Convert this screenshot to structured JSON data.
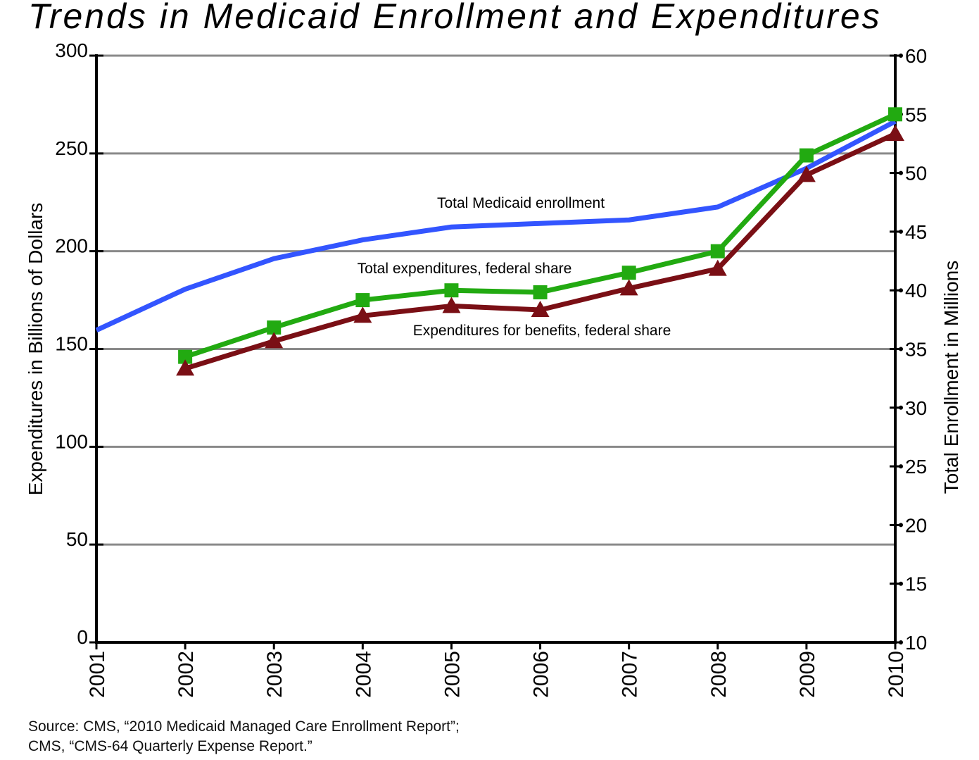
{
  "chart_data": {
    "type": "line",
    "title": "Trends in Medicaid Enrollment and Expenditures",
    "x": [
      "2001",
      "2002",
      "2003",
      "2004",
      "2005",
      "2006",
      "2007",
      "2008",
      "2009",
      "2010"
    ],
    "left_axis": {
      "label": "Expenditures in Billions of Dollars",
      "ylim": [
        0,
        300
      ],
      "ticks": [
        "0",
        "50",
        "100",
        "150",
        "200",
        "250",
        "300"
      ]
    },
    "right_axis": {
      "label": "Total Enrollment in Millions",
      "ylim": [
        10,
        60
      ],
      "ticks": [
        "10",
        "15",
        "20",
        "25",
        "30",
        "35",
        "40",
        "45",
        "50",
        "55",
        "60"
      ]
    },
    "grid": true,
    "series": [
      {
        "name": "Total Medicaid enrollment",
        "axis": "right",
        "color": "#3355ff",
        "marker": "none",
        "values": [
          36.6,
          40.1,
          42.7,
          44.3,
          45.4,
          45.7,
          46.0,
          47.1,
          50.4,
          54.4
        ]
      },
      {
        "name": "Total expenditures, federal share",
        "axis": "left",
        "color": "#22aa11",
        "marker": "square",
        "values": [
          null,
          146,
          161,
          175,
          180,
          179,
          189,
          200,
          249,
          270
        ]
      },
      {
        "name": "Expenditures for benefits, federal share",
        "axis": "left",
        "color": "#7a0f15",
        "marker": "triangle",
        "values": [
          null,
          140,
          154,
          167,
          172,
          170,
          181,
          191,
          239,
          260
        ]
      }
    ],
    "source": [
      "Source: CMS, “2010 Medicaid Managed Care Enrollment Report”;",
      "CMS, “CMS-64 Quarterly Expense Report.”"
    ]
  }
}
